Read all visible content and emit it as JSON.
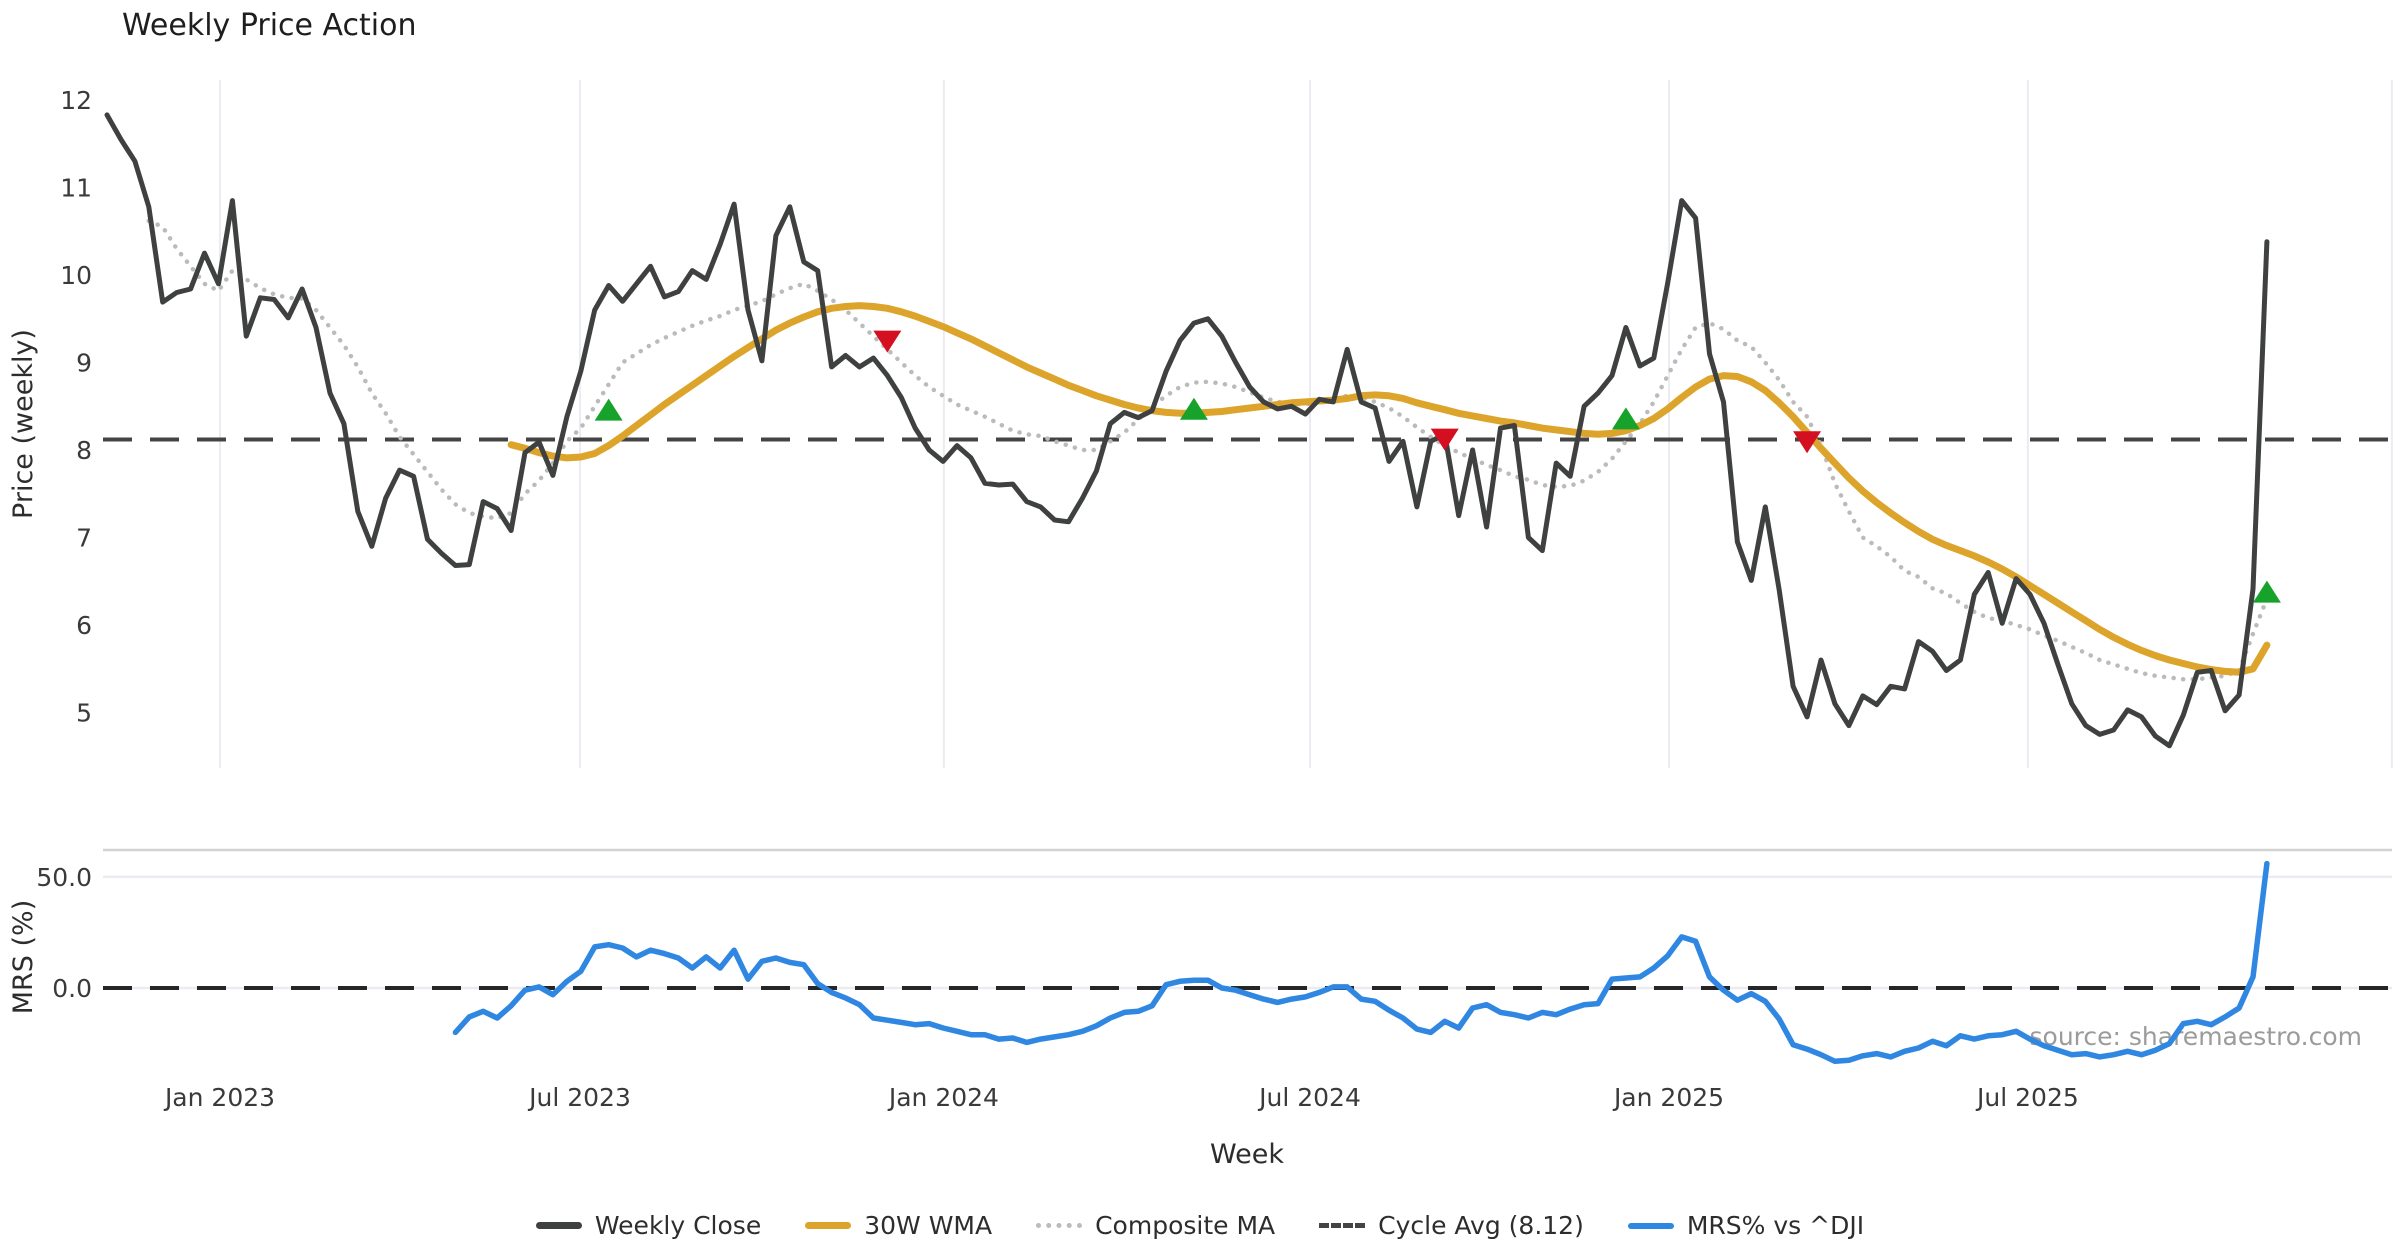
{
  "title": "Weekly Price Action",
  "source_note": "source: sharemaestro.com",
  "colors": {
    "close": "#3f4040",
    "wma": "#dda42c",
    "composite": "#bbbbbb",
    "cycle_avg": "#444444",
    "mrs": "#2f87e2",
    "buy_marker": "#17a32b",
    "sell_marker": "#d40f1f",
    "grid": "#ebebf2",
    "panel_spine": "#d2d2d2",
    "tick_text": "#3a3a3a",
    "axis_label_text": "#2d2d2d"
  },
  "legend": [
    {
      "label": "Weekly Close",
      "swatch": "solid-dark"
    },
    {
      "label": "30W WMA",
      "swatch": "solid-gold"
    },
    {
      "label": "Composite MA",
      "swatch": "dotted-gray"
    },
    {
      "label": "Cycle Avg (8.12)",
      "swatch": "dashed-dark"
    },
    {
      "label": "MRS% vs ^DJI",
      "swatch": "solid-blue"
    }
  ],
  "chart_data": {
    "type": "line",
    "title": "Weekly Price Action",
    "xlabel": "Week",
    "x_unit": "week_index",
    "x_ticks": [
      {
        "label": "Jan 2023",
        "week": 8.11
      },
      {
        "label": "Jul 2023",
        "week": 33.94
      },
      {
        "label": "Jan 2024",
        "week": 60.06
      },
      {
        "label": "Jul 2024",
        "week": 86.33
      },
      {
        "label": "Jan 2025",
        "week": 112.09
      },
      {
        "label": "Jul 2025",
        "week": 137.85
      },
      {
        "label": "",
        "week": 163.97
      }
    ],
    "price_panel": {
      "ylabel": "Price (weekly)",
      "ylim": [
        4.34,
        12.29
      ],
      "yticks": [
        12,
        11,
        10,
        9,
        8,
        7,
        6,
        5
      ],
      "cycle_avg": 8.12,
      "grid": "vertical-only",
      "series": [
        {
          "name": "Weekly Close",
          "start_week": 0,
          "values": [
            11.83,
            11.55,
            11.3,
            10.78,
            9.69,
            9.8,
            9.84,
            10.25,
            9.9,
            10.85,
            9.3,
            9.74,
            9.72,
            9.51,
            9.84,
            9.4,
            8.65,
            8.3,
            7.3,
            6.9,
            7.45,
            7.77,
            7.7,
            6.98,
            6.82,
            6.68,
            6.69,
            7.41,
            7.33,
            7.08,
            7.97,
            8.09,
            7.71,
            8.38,
            8.9,
            9.6,
            9.88,
            9.7,
            9.9,
            10.1,
            9.75,
            9.81,
            10.05,
            9.95,
            10.35,
            10.81,
            9.6,
            9.02,
            10.45,
            10.78,
            10.15,
            10.05,
            8.95,
            9.08,
            8.95,
            9.05,
            8.85,
            8.6,
            8.25,
            8.0,
            7.87,
            8.05,
            7.91,
            7.62,
            7.6,
            7.61,
            7.41,
            7.35,
            7.2,
            7.18,
            7.45,
            7.76,
            8.3,
            8.43,
            8.37,
            8.45,
            8.9,
            9.25,
            9.45,
            9.5,
            9.3,
            9.0,
            8.72,
            8.55,
            8.47,
            8.5,
            8.41,
            8.58,
            8.55,
            9.15,
            8.55,
            8.48,
            7.87,
            8.1,
            7.35,
            8.1,
            8.18,
            7.25,
            8.0,
            7.12,
            8.25,
            8.28,
            7.0,
            6.85,
            7.85,
            7.7,
            8.5,
            8.65,
            8.85,
            9.4,
            8.96,
            9.05,
            9.91,
            10.85,
            10.65,
            9.1,
            8.55,
            6.95,
            6.51,
            7.35,
            6.4,
            5.3,
            4.95,
            5.6,
            5.1,
            4.85,
            5.19,
            5.09,
            5.3,
            5.27,
            5.81,
            5.7,
            5.48,
            5.6,
            6.35,
            6.6,
            6.02,
            6.53,
            6.35,
            6.02,
            5.55,
            5.1,
            4.85,
            4.75,
            4.8,
            5.03,
            4.95,
            4.73,
            4.62,
            4.97,
            5.46,
            5.48,
            5.02,
            5.2,
            6.41,
            10.38
          ]
        },
        {
          "name": "30W WMA",
          "start_week": 29,
          "values": [
            8.06,
            8.02,
            7.97,
            7.93,
            7.91,
            7.92,
            7.96,
            8.05,
            8.16,
            8.28,
            8.4,
            8.52,
            8.63,
            8.74,
            8.85,
            8.96,
            9.07,
            9.17,
            9.27,
            9.37,
            9.45,
            9.52,
            9.58,
            9.62,
            9.64,
            9.65,
            9.64,
            9.62,
            9.58,
            9.53,
            9.47,
            9.41,
            9.34,
            9.27,
            9.19,
            9.11,
            9.03,
            8.95,
            8.88,
            8.81,
            8.74,
            8.68,
            8.62,
            8.57,
            8.52,
            8.48,
            8.45,
            8.43,
            8.42,
            8.42,
            8.43,
            8.44,
            8.46,
            8.48,
            8.5,
            8.52,
            8.54,
            8.55,
            8.56,
            8.57,
            8.59,
            8.62,
            8.63,
            8.62,
            8.59,
            8.54,
            8.5,
            8.46,
            8.42,
            8.39,
            8.36,
            8.33,
            8.31,
            8.28,
            8.25,
            8.23,
            8.21,
            8.19,
            8.18,
            8.19,
            8.22,
            8.28,
            8.36,
            8.47,
            8.6,
            8.72,
            8.81,
            8.85,
            8.84,
            8.78,
            8.68,
            8.54,
            8.38,
            8.2,
            8.02,
            7.85,
            7.68,
            7.53,
            7.4,
            7.28,
            7.17,
            7.07,
            6.98,
            6.91,
            6.85,
            6.79,
            6.72,
            6.64,
            6.55,
            6.45,
            6.35,
            6.25,
            6.15,
            6.05,
            5.95,
            5.86,
            5.78,
            5.71,
            5.65,
            5.6,
            5.56,
            5.52,
            5.49,
            5.47,
            5.46,
            5.5,
            5.77
          ]
        },
        {
          "name": "Composite MA",
          "start_week": 3,
          "values": [
            10.62,
            10.55,
            10.3,
            10.1,
            9.9,
            9.82,
            10.05,
            9.95,
            9.85,
            9.78,
            9.74,
            9.73,
            9.6,
            9.4,
            9.2,
            8.95,
            8.65,
            8.42,
            8.15,
            7.95,
            7.75,
            7.55,
            7.38,
            7.28,
            7.24,
            7.22,
            7.28,
            7.5,
            7.65,
            7.85,
            8.1,
            8.25,
            8.5,
            8.75,
            9.0,
            9.1,
            9.2,
            9.28,
            9.35,
            9.42,
            9.48,
            9.53,
            9.6,
            9.65,
            9.7,
            9.78,
            9.85,
            9.9,
            9.82,
            9.72,
            9.6,
            9.45,
            9.3,
            9.15,
            9.0,
            8.85,
            8.72,
            8.62,
            8.52,
            8.45,
            8.38,
            8.3,
            8.22,
            8.18,
            8.16,
            8.1,
            8.05,
            8.0,
            8.0,
            8.1,
            8.2,
            8.35,
            8.5,
            8.62,
            8.72,
            8.77,
            8.78,
            8.76,
            8.72,
            8.66,
            8.6,
            8.55,
            8.53,
            8.52,
            8.55,
            8.58,
            8.62,
            8.6,
            8.55,
            8.48,
            8.38,
            8.26,
            8.15,
            8.05,
            7.97,
            7.9,
            7.83,
            7.77,
            7.7,
            7.66,
            7.6,
            7.58,
            7.59,
            7.65,
            7.75,
            7.9,
            8.1,
            8.3,
            8.55,
            8.85,
            9.15,
            9.4,
            9.45,
            9.38,
            9.25,
            9.18,
            9.0,
            8.8,
            8.55,
            8.38,
            8.05,
            7.62,
            7.3,
            7.0,
            6.9,
            6.78,
            6.62,
            6.55,
            6.42,
            6.36,
            6.25,
            6.15,
            6.08,
            6.05,
            6.0,
            5.95,
            5.88,
            5.82,
            5.75,
            5.68,
            5.6,
            5.55,
            5.5,
            5.45,
            5.42,
            5.4,
            5.38,
            5.38,
            5.4,
            5.42,
            5.48,
            5.9,
            6.3
          ]
        }
      ],
      "buy_signals": [
        {
          "week": 36,
          "value": 8.45
        },
        {
          "week": 78,
          "value": 8.46
        },
        {
          "week": 109,
          "value": 8.35
        },
        {
          "week": 155,
          "value": 6.37
        }
      ],
      "sell_signals": [
        {
          "week": 56,
          "value": 9.25
        },
        {
          "week": 96,
          "value": 8.13
        },
        {
          "week": 122,
          "value": 8.1
        }
      ]
    },
    "mrs_panel": {
      "ylabel": "MRS (%)",
      "ylim": [
        -35,
        62
      ],
      "yticks": [
        {
          "label": "50.0",
          "value": 50
        },
        {
          "label": "0.0",
          "value": 0
        }
      ],
      "zero_line": 0,
      "series": {
        "name": "MRS% vs ^DJI",
        "start_week": 25,
        "values": [
          -20,
          -13,
          -10.5,
          -13.5,
          -8,
          -1,
          0.5,
          -3,
          3,
          7.5,
          18.5,
          19.5,
          18,
          14,
          17,
          15.5,
          13.5,
          9,
          14,
          9,
          17,
          4,
          12,
          13.5,
          11.5,
          10.5,
          2,
          -2,
          -4.5,
          -7.5,
          -13.5,
          -14.5,
          -15.5,
          -16.5,
          -16,
          -18,
          -19.5,
          -21,
          -21,
          -23,
          -22.5,
          -24.5,
          -23,
          -22,
          -21,
          -19.5,
          -17,
          -13.5,
          -11,
          -10.5,
          -8,
          1.5,
          3,
          3.5,
          3.5,
          0,
          -1,
          -3,
          -5,
          -6.5,
          -5,
          -4,
          -2,
          0.5,
          0.5,
          -5,
          -6,
          -10,
          -13.5,
          -18.5,
          -20,
          -15,
          -18,
          -9,
          -7.5,
          -11,
          -12,
          -13.5,
          -11,
          -12,
          -9.5,
          -7.5,
          -7,
          4,
          4.5,
          5,
          9,
          14.5,
          23,
          21,
          5,
          -1,
          -5.5,
          -2.5,
          -6,
          -14,
          -25.5,
          -27.5,
          -30,
          -33,
          -32.5,
          -30.5,
          -29.5,
          -31,
          -28.5,
          -27,
          -24,
          -26,
          -21.5,
          -23,
          -21.5,
          -21,
          -19.5,
          -23,
          -26,
          -28,
          -30,
          -29.5,
          -31,
          -30,
          -28.5,
          -30,
          -28,
          -25,
          -16,
          -15,
          -16.5,
          -13,
          -9,
          5,
          56
        ]
      }
    }
  }
}
